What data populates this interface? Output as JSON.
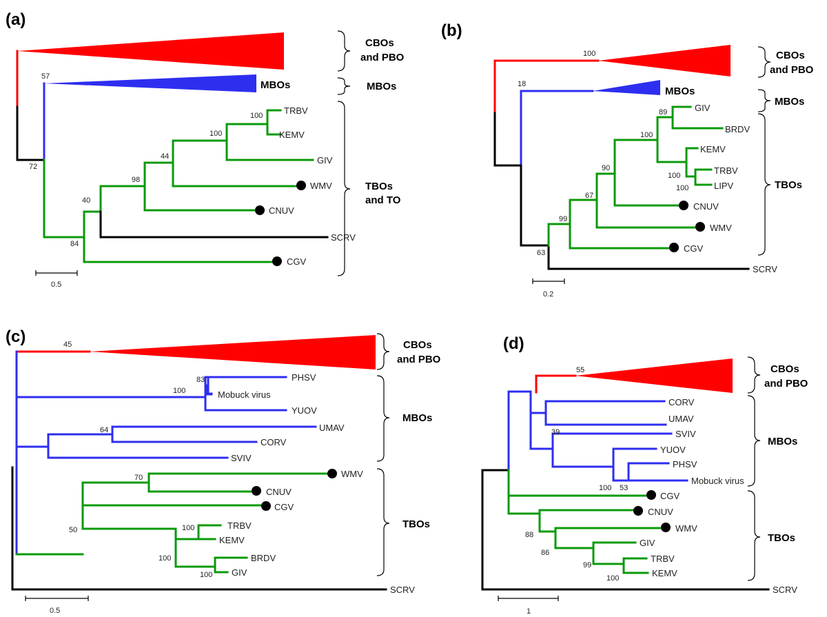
{
  "colors": {
    "red": "#ff0000",
    "blue": "#2e2ef0",
    "green": "#0a9a0a",
    "black": "#000000"
  },
  "panels": [
    {
      "id": "a",
      "label": "(a)",
      "scale_label": "0.5",
      "leaves": [
        "TRBV",
        "KEMV",
        "GIV",
        "WMV",
        "CNUV",
        "SCRV",
        "CGV"
      ],
      "leaf_markers": [
        "WMV",
        "CNUV",
        "CGV"
      ],
      "bootstrap": [
        "57",
        "72",
        "100",
        "100",
        "44",
        "98",
        "40",
        "84"
      ],
      "clade_labels": [
        "CBOs",
        "and PBO",
        "MBOs",
        "TBOs",
        "and TO"
      ]
    },
    {
      "id": "b",
      "label": "(b)",
      "scale_label": "0.2",
      "leaves": [
        "GIV",
        "BRDV",
        "KEMV",
        "TRBV",
        "LIPV",
        "CNUV",
        "WMV",
        "CGV",
        "SCRV"
      ],
      "leaf_markers": [
        "CNUV",
        "WMV",
        "CGV"
      ],
      "bootstrap": [
        "100",
        "18",
        "89",
        "100",
        "100",
        "100",
        "90",
        "67",
        "99",
        "63"
      ],
      "clade_labels": [
        "CBOs",
        "and PBO",
        "MBOs",
        "TBOs"
      ]
    },
    {
      "id": "c",
      "label": "(c)",
      "scale_label": "0.5",
      "leaves": [
        "PHSV",
        "Mobuck virus",
        "YUOV",
        "UMAV",
        "CORV",
        "SVIV",
        "WMV",
        "CNUV",
        "CGV",
        "TRBV",
        "KEMV",
        "BRDV",
        "GIV",
        "SCRV"
      ],
      "leaf_markers": [
        "WMV",
        "CNUV",
        "CGV"
      ],
      "bootstrap": [
        "45",
        "83",
        "100",
        "64",
        "70",
        "50",
        "100",
        "100",
        "100"
      ],
      "clade_labels": [
        "CBOs",
        "and PBO",
        "MBOs",
        "TBOs"
      ]
    },
    {
      "id": "d",
      "label": "(d)",
      "scale_label": "1",
      "leaves": [
        "CORV",
        "UMAV",
        "SVIV",
        "YUOV",
        "PHSV",
        "Mobuck virus",
        "CGV",
        "CNUV",
        "WMV",
        "GIV",
        "TRBV",
        "KEMV",
        "SCRV"
      ],
      "leaf_markers": [
        "CGV",
        "CNUV",
        "WMV"
      ],
      "bootstrap": [
        "55",
        "39",
        "100",
        "53",
        "88",
        "86",
        "99",
        "100"
      ],
      "clade_labels": [
        "CBOs",
        "and PBO",
        "MBOs",
        "TBOs"
      ]
    }
  ]
}
